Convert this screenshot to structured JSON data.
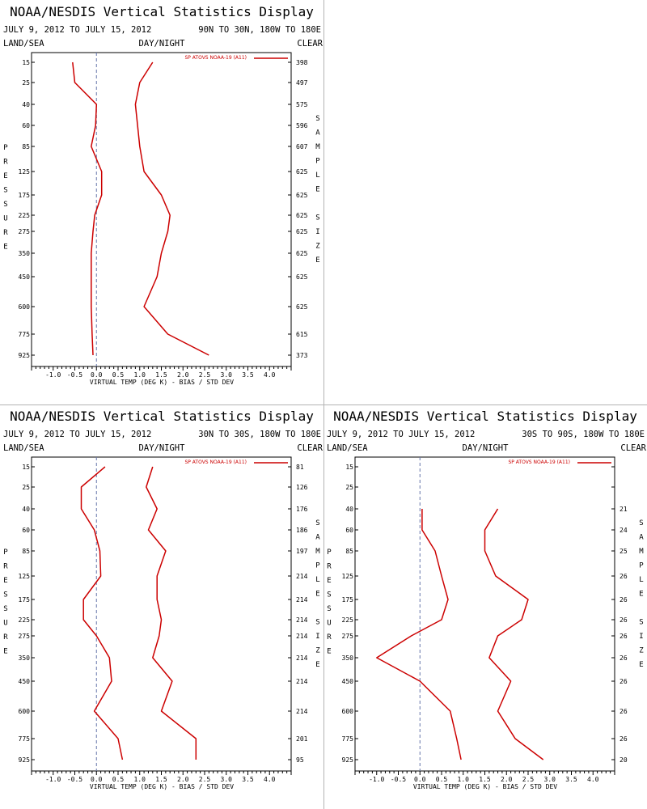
{
  "title": "NOAA/NESDIS Vertical Statistics Display",
  "date_range": "JULY 9, 2012 TO JULY 15, 2012",
  "header_left": "LAND/SEA",
  "header_center": "DAY/NIGHT",
  "header_right": "CLEAR",
  "y_axis_title": "PRESSURE",
  "right_axis_title": "SAMPLE SIZE",
  "x_axis_label": "VIRTUAL TEMP (DEG K) - BIAS / STD DEV",
  "line_color": "#cc0000",
  "chart_data": [
    {
      "type": "line",
      "region": "90N TO 30N, 180W TO 180E",
      "legend": "SP ATOVS NOAA-19 (A11)",
      "levels": [
        "15",
        "25",
        "40",
        "60",
        "85",
        "125",
        "175",
        "225",
        "275",
        "350",
        "450",
        "600",
        "775",
        "925"
      ],
      "x_ticks": [
        "-1.0",
        "-0.5",
        "0.0",
        "0.5",
        "1.0",
        "1.5",
        "2.0",
        "2.5",
        "3.0",
        "3.5",
        "4.0"
      ],
      "xlim": [
        -1.5,
        4.5
      ],
      "sample_size": [
        "398",
        "497",
        "575",
        "596",
        "607",
        "625",
        "625",
        "625",
        "625",
        "625",
        "625",
        "625",
        "615",
        "373"
      ],
      "series": [
        {
          "values": [
            -0.55,
            -0.5,
            0.0,
            -0.02,
            -0.12,
            0.12,
            0.12,
            -0.04,
            -0.08,
            -0.12,
            -0.12,
            -0.12,
            -0.1,
            -0.08
          ]
        },
        {
          "values": [
            1.3,
            1.0,
            0.9,
            0.95,
            1.0,
            1.1,
            1.5,
            1.7,
            1.65,
            1.5,
            1.4,
            1.1,
            1.65,
            2.6
          ]
        }
      ]
    },
    {
      "type": "line",
      "region": "30N TO 30S, 180W TO 180E",
      "legend": "SP ATOVS NOAA-19 (A11)",
      "levels": [
        "15",
        "25",
        "40",
        "60",
        "85",
        "125",
        "175",
        "225",
        "275",
        "350",
        "450",
        "600",
        "775",
        "925"
      ],
      "x_ticks": [
        "-1.0",
        "-0.5",
        "0.0",
        "0.5",
        "1.0",
        "1.5",
        "2.0",
        "2.5",
        "3.0",
        "3.5",
        "4.0"
      ],
      "xlim": [
        -1.5,
        4.5
      ],
      "sample_size": [
        "81",
        "126",
        "176",
        "186",
        "197",
        "214",
        "214",
        "214",
        "214",
        "214",
        "214",
        "214",
        "201",
        "95"
      ],
      "series": [
        {
          "values": [
            0.2,
            -0.35,
            -0.35,
            -0.05,
            0.08,
            0.1,
            -0.3,
            -0.3,
            0.0,
            0.3,
            0.35,
            -0.05,
            0.5,
            0.6
          ]
        },
        {
          "values": [
            1.3,
            1.15,
            1.4,
            1.2,
            1.6,
            1.4,
            1.4,
            1.5,
            1.45,
            1.3,
            1.75,
            1.5,
            2.3,
            2.3
          ]
        }
      ]
    },
    {
      "type": "line",
      "region": "30S TO 90S, 180W TO 180E",
      "legend": "SP ATOVS NOAA-19 (A11)",
      "levels": [
        "15",
        "25",
        "40",
        "60",
        "85",
        "125",
        "175",
        "225",
        "275",
        "350",
        "450",
        "600",
        "775",
        "925"
      ],
      "x_ticks": [
        "-1.0",
        "-0.5",
        "0.0",
        "0.5",
        "1.0",
        "1.5",
        "2.0",
        "2.5",
        "3.0",
        "3.5",
        "4.0"
      ],
      "xlim": [
        -1.5,
        4.5
      ],
      "sample_size": [
        "",
        "",
        "21",
        "24",
        "25",
        "26",
        "26",
        "26",
        "26",
        "26",
        "26",
        "26",
        "26",
        "20"
      ],
      "series": [
        {
          "values": [
            null,
            null,
            0.05,
            0.05,
            0.35,
            0.5,
            0.65,
            0.5,
            -0.2,
            -1.0,
            0.0,
            0.7,
            0.85,
            0.95
          ]
        },
        {
          "values": [
            null,
            null,
            1.8,
            1.5,
            1.5,
            1.75,
            2.5,
            2.35,
            1.8,
            1.6,
            2.1,
            1.8,
            2.2,
            2.85
          ]
        }
      ]
    }
  ]
}
